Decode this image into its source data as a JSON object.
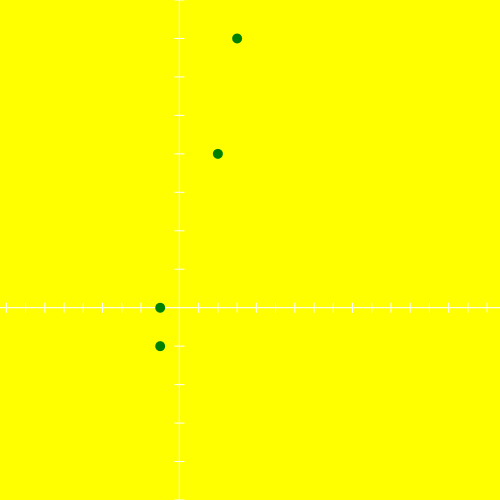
{
  "chart_data": {
    "type": "scatter",
    "title": "",
    "xlabel": "",
    "ylabel": "",
    "xlim": [
      -9.33,
      16.67
    ],
    "ylim": [
      -5,
      8
    ],
    "grid": false,
    "axes_color": "#ffffff",
    "background_color": "#ffff00",
    "point_color": "#008000",
    "x_ticks": [
      -9,
      -8,
      -7,
      -6,
      -5,
      -4,
      -3,
      -2,
      -1,
      1,
      2,
      3,
      4,
      5,
      6,
      7,
      8,
      9,
      10,
      11,
      12,
      13,
      14,
      15,
      16
    ],
    "y_ticks": [
      -5,
      -4,
      -3,
      -2,
      -1,
      1,
      2,
      3,
      4,
      5,
      6,
      7,
      8
    ],
    "points": [
      {
        "x": 3,
        "y": 7
      },
      {
        "x": 2,
        "y": 4
      },
      {
        "x": -1,
        "y": 0
      },
      {
        "x": -1,
        "y": -1
      }
    ]
  }
}
